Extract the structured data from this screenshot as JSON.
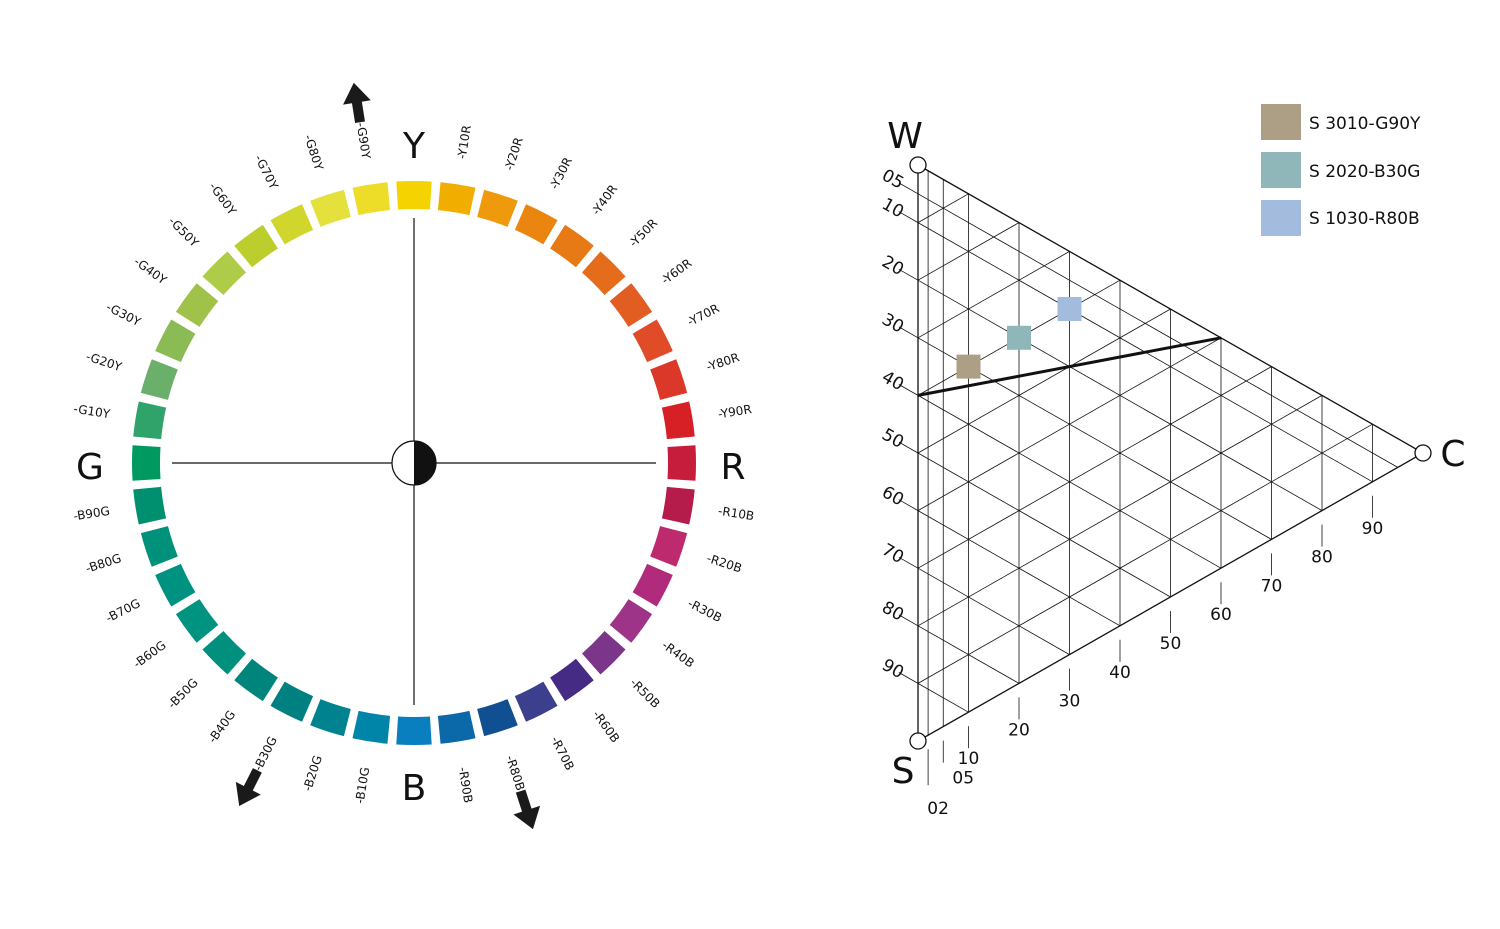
{
  "hue_circle": {
    "cardinals": {
      "top": "Y",
      "right": "R",
      "bottom": "B",
      "left": "G"
    },
    "segments": [
      {
        "label": "Y",
        "color": "#F5D300"
      },
      {
        "label": "-Y10R",
        "color": "#F2AE00"
      },
      {
        "label": "-Y20R",
        "color": "#EE9A0C"
      },
      {
        "label": "-Y30R",
        "color": "#EA8510"
      },
      {
        "label": "-Y40R",
        "color": "#E77A14"
      },
      {
        "label": "-Y50R",
        "color": "#E56C1A"
      },
      {
        "label": "-Y60R",
        "color": "#E25D22"
      },
      {
        "label": "-Y70R",
        "color": "#DF4C27"
      },
      {
        "label": "-Y80R",
        "color": "#DC3829"
      },
      {
        "label": "-Y90R",
        "color": "#D71F26"
      },
      {
        "label": "R",
        "color": "#C61D3C"
      },
      {
        "label": "-R10B",
        "color": "#B51B4B"
      },
      {
        "label": "-R20B",
        "color": "#BD2A6E"
      },
      {
        "label": "-R30B",
        "color": "#B12B7C"
      },
      {
        "label": "-R40B",
        "color": "#9E3488"
      },
      {
        "label": "-R50B",
        "color": "#7C3689"
      },
      {
        "label": "-R60B",
        "color": "#452B84"
      },
      {
        "label": "-R70B",
        "color": "#3C3F8D"
      },
      {
        "label": "-R80B",
        "color": "#104F92"
      },
      {
        "label": "-R90B",
        "color": "#0B69AA"
      },
      {
        "label": "B",
        "color": "#0A7FC0"
      },
      {
        "label": "-B10G",
        "color": "#0085A8"
      },
      {
        "label": "-B20G",
        "color": "#00838F"
      },
      {
        "label": "-B30G",
        "color": "#008080"
      },
      {
        "label": "-B40G",
        "color": "#00857D"
      },
      {
        "label": "-B50G",
        "color": "#00907D"
      },
      {
        "label": "-B60G",
        "color": "#009480"
      },
      {
        "label": "-B70G",
        "color": "#009281"
      },
      {
        "label": "-B80G",
        "color": "#00917A"
      },
      {
        "label": "-B90G",
        "color": "#009070"
      },
      {
        "label": "G",
        "color": "#009A60"
      },
      {
        "label": "-G10Y",
        "color": "#2FA36A"
      },
      {
        "label": "-G20Y",
        "color": "#6AAF6A"
      },
      {
        "label": "-G30Y",
        "color": "#8ABB55"
      },
      {
        "label": "-G40Y",
        "color": "#A0C24A"
      },
      {
        "label": "-G50Y",
        "color": "#AECC48"
      },
      {
        "label": "-G60Y",
        "color": "#BBCE2E"
      },
      {
        "label": "-G70Y",
        "color": "#D0D62C"
      },
      {
        "label": "-G80Y",
        "color": "#E4E03C"
      },
      {
        "label": "-G90Y",
        "color": "#EEDD28"
      }
    ],
    "arrows_at": [
      "-G90Y",
      "-B30G",
      "-R80B"
    ]
  },
  "nuance_triangle": {
    "corners": {
      "whiteness": "W",
      "chromaticness": "C",
      "blackness": "S"
    },
    "blackness_scale": [
      "05",
      "10",
      "20",
      "30",
      "40",
      "50",
      "60",
      "70",
      "80",
      "90"
    ],
    "chromaticness_scale": [
      "02",
      "05",
      "10",
      "20",
      "30",
      "40",
      "50",
      "60",
      "70",
      "80",
      "90"
    ],
    "highlight_line": {
      "blackness_start": 40,
      "whiteness_end": 40
    },
    "samples": [
      {
        "blackness": 30,
        "chromaticness": 10,
        "color": "#AC9F85"
      },
      {
        "blackness": 20,
        "chromaticness": 20,
        "color": "#8FB7BA"
      },
      {
        "blackness": 10,
        "chromaticness": 30,
        "color": "#A3BCDE"
      }
    ]
  },
  "legend": [
    {
      "label": "S 3010-G90Y",
      "color": "#AC9F85"
    },
    {
      "label": "S 2020-B30G",
      "color": "#8FB7BA"
    },
    {
      "label": "S 1030-R80B",
      "color": "#A3BCDE"
    }
  ]
}
